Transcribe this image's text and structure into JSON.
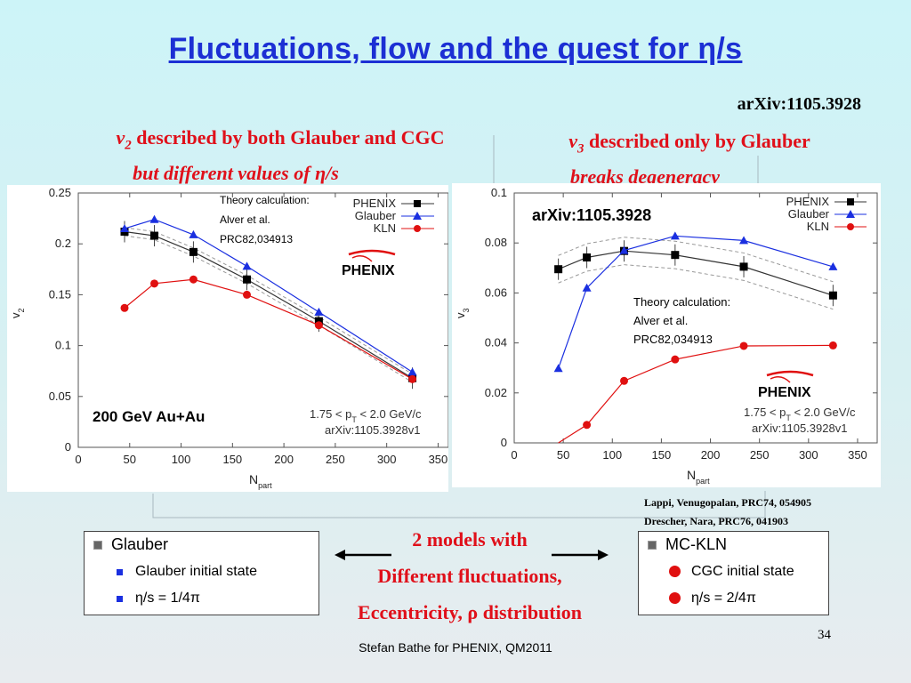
{
  "slide": {
    "title": "Fluctuations, flow and the quest for η/s",
    "arxiv_top": "arXiv:1105.3928",
    "left_heading_symbol": "v",
    "left_heading_sub": "2",
    "left_heading_text": " described by both Glauber and CGC",
    "left_heading_line2": "but different values of η/s",
    "right_heading_symbol": "v",
    "right_heading_sub": "3",
    "right_heading_text": " described only by Glauber",
    "right_heading_line2": "breaks degeneracy",
    "references": [
      "Lappi, Venugopalan, PRC74, 054905",
      "Drescher, Nara, PRC76, 041903"
    ],
    "center_text": [
      "2 models with",
      "Different fluctuations,",
      "Eccentricity, ρ distribution"
    ],
    "left_box": {
      "title": "Glauber",
      "items": [
        "Glauber initial state",
        "η/s = 1/4π"
      ]
    },
    "right_box": {
      "title": "MC-KLN",
      "items": [
        "CGC initial state",
        "η/s = 2/4π"
      ]
    },
    "footer": "Stefan Bathe for PHENIX, QM2011",
    "page_number": "34",
    "colors": {
      "title": "#1c2fd4",
      "accent": "#e0101a",
      "phenix": "#000000",
      "glauber": "#1a2fe0",
      "kln": "#e01010"
    }
  },
  "chart_data": [
    {
      "type": "line",
      "xlabel": "N_part",
      "ylabel": "v_2",
      "xlim": [
        0,
        360
      ],
      "ylim": [
        0,
        0.25
      ],
      "xticks": [
        0,
        50,
        100,
        150,
        200,
        250,
        300,
        350
      ],
      "yticks": [
        0,
        0.05,
        0.1,
        0.15,
        0.2,
        0.25
      ],
      "ytick_labels": [
        "0",
        "0.05",
        "0.1",
        "0.15",
        "0.2",
        "0.25"
      ],
      "series": [
        {
          "name": "PHENIX",
          "x": [
            45,
            74,
            112,
            164,
            234,
            325
          ],
          "y": [
            0.212,
            0.208,
            0.192,
            0.165,
            0.124,
            0.068
          ]
        },
        {
          "name": "Glauber",
          "x": [
            45,
            74,
            112,
            164,
            234,
            325
          ],
          "y": [
            0.215,
            0.224,
            0.209,
            0.178,
            0.133,
            0.074
          ]
        },
        {
          "name": "KLN",
          "x": [
            45,
            74,
            112,
            164,
            234,
            325
          ],
          "y": [
            0.137,
            0.161,
            0.165,
            0.15,
            0.12,
            0.067
          ]
        }
      ],
      "annotations": [
        "Theory calculation:",
        "Alver et al.",
        "PRC82,034913",
        "200 GeV Au+Au",
        "1.75 < p_T < 2.0 GeV/c",
        "arXiv:1105.3928v1"
      ],
      "logo": "PHENIX",
      "legend_position": "top-right"
    },
    {
      "type": "line",
      "xlabel": "N_part",
      "ylabel": "v_3",
      "xlim": [
        0,
        370
      ],
      "ylim": [
        0,
        0.1
      ],
      "xticks": [
        0,
        50,
        100,
        150,
        200,
        250,
        300,
        350
      ],
      "yticks": [
        0,
        0.02,
        0.04,
        0.06,
        0.08,
        0.1
      ],
      "ytick_labels": [
        "0",
        "0.02",
        "0.04",
        "0.06",
        "0.08",
        "0.1"
      ],
      "series": [
        {
          "name": "PHENIX",
          "x": [
            45,
            74,
            112,
            164,
            234,
            325
          ],
          "y": [
            0.0695,
            0.0742,
            0.0768,
            0.0752,
            0.0705,
            0.059
          ]
        },
        {
          "name": "Glauber",
          "x": [
            45,
            74,
            112,
            164,
            234,
            325
          ],
          "y": [
            0.0298,
            0.062,
            0.077,
            0.0828,
            0.081,
            0.0705
          ]
        },
        {
          "name": "KLN",
          "x": [
            45,
            74,
            112,
            164,
            234,
            325
          ],
          "y": [
            -0.002,
            0.0072,
            0.0248,
            0.0334,
            0.0388,
            0.039
          ]
        }
      ],
      "annotations": [
        "arXiv:1105.3928",
        "Theory calculation:",
        "Alver et al.",
        "PRC82,034913",
        "1.75 < p_T < 2.0 GeV/c",
        "arXiv:1105.3928v1"
      ],
      "logo": "PHENIX",
      "legend_position": "top-right"
    }
  ]
}
